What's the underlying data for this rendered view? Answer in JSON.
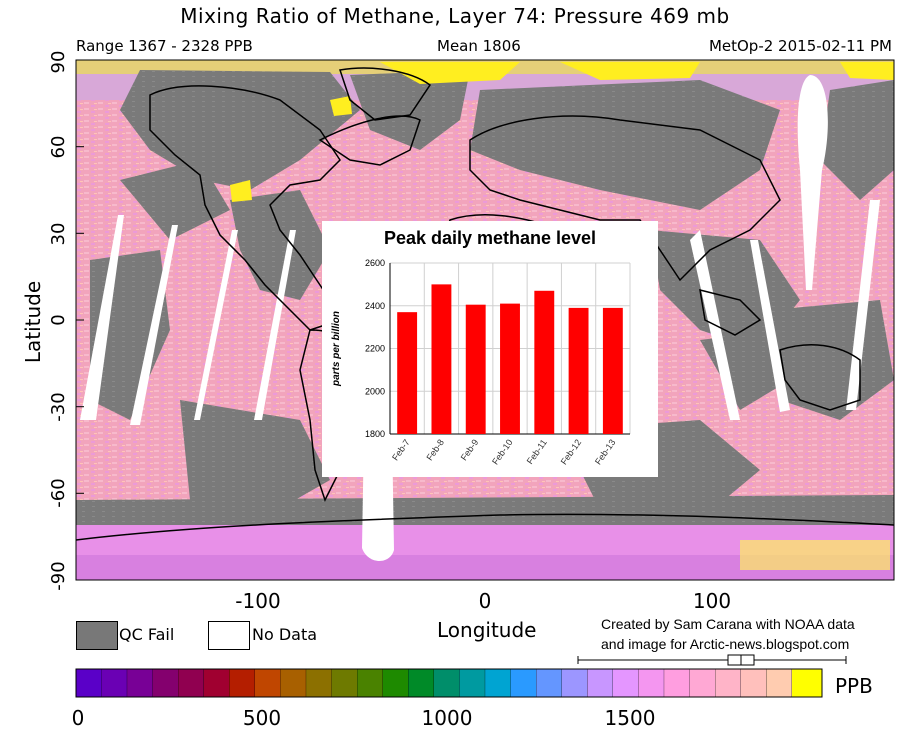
{
  "header": {
    "title": "Mixing Ratio of Methane, Layer 74: Pressure 469 mb",
    "range": "Range 1367 - 2328 PPB",
    "mean": "Mean 1806",
    "source": "MetOp-2 2015-02-11 PM"
  },
  "axes": {
    "y_label": "Latitude",
    "x_label": "Longitude",
    "lat_ticks": [
      "90",
      "60",
      "30",
      "0",
      "-30",
      "-60",
      "-90"
    ],
    "lon_ticks": [
      "-100",
      "0",
      "100"
    ]
  },
  "legend": {
    "qc_fail": "QC Fail",
    "no_data": "No Data",
    "qc_color": "#787878",
    "no_data_color": "#ffffff"
  },
  "credit": {
    "line1": "Created by Sam Carana with NOAA data",
    "line2": "and image for Arctic-news.blogspot.com"
  },
  "colorbar": {
    "unit": "PPB",
    "ticks": [
      "0",
      "500",
      "1000",
      "1500"
    ],
    "colors": [
      "#5a00c8",
      "#6a00b4",
      "#780096",
      "#84006e",
      "#900050",
      "#a00030",
      "#b41e00",
      "#c04600",
      "#a86000",
      "#8c7000",
      "#6e7a00",
      "#4a8200",
      "#1e8a00",
      "#008a28",
      "#008e6a",
      "#009aa0",
      "#00a4d2",
      "#2a9aff",
      "#6496ff",
      "#9c96ff",
      "#c896ff",
      "#e496ff",
      "#f496f0",
      "#ff9ee0",
      "#ffa8d4",
      "#ffb4c8",
      "#ffc0bc",
      "#ffccb0",
      "#ffff00"
    ]
  },
  "map": {
    "colors": {
      "ocean": "#f4a8c0",
      "qc": "#787878",
      "high": "#ffee30",
      "low": "#e890e8"
    }
  },
  "chart_data": {
    "type": "bar",
    "title": "Peak daily methane level",
    "categories": [
      "Feb-7",
      "Feb-8",
      "Feb-9",
      "Feb-10",
      "Feb-11",
      "Feb-12",
      "Feb-13"
    ],
    "values": [
      2370,
      2500,
      2405,
      2410,
      2470,
      2390,
      2390
    ],
    "ylabel": "parts per billion",
    "xlabel": "",
    "ylim": [
      1800,
      2600
    ],
    "yticks": [
      "2600",
      "2400",
      "2200",
      "2000",
      "1800"
    ],
    "bar_color": "#ff0000",
    "grid": true
  }
}
